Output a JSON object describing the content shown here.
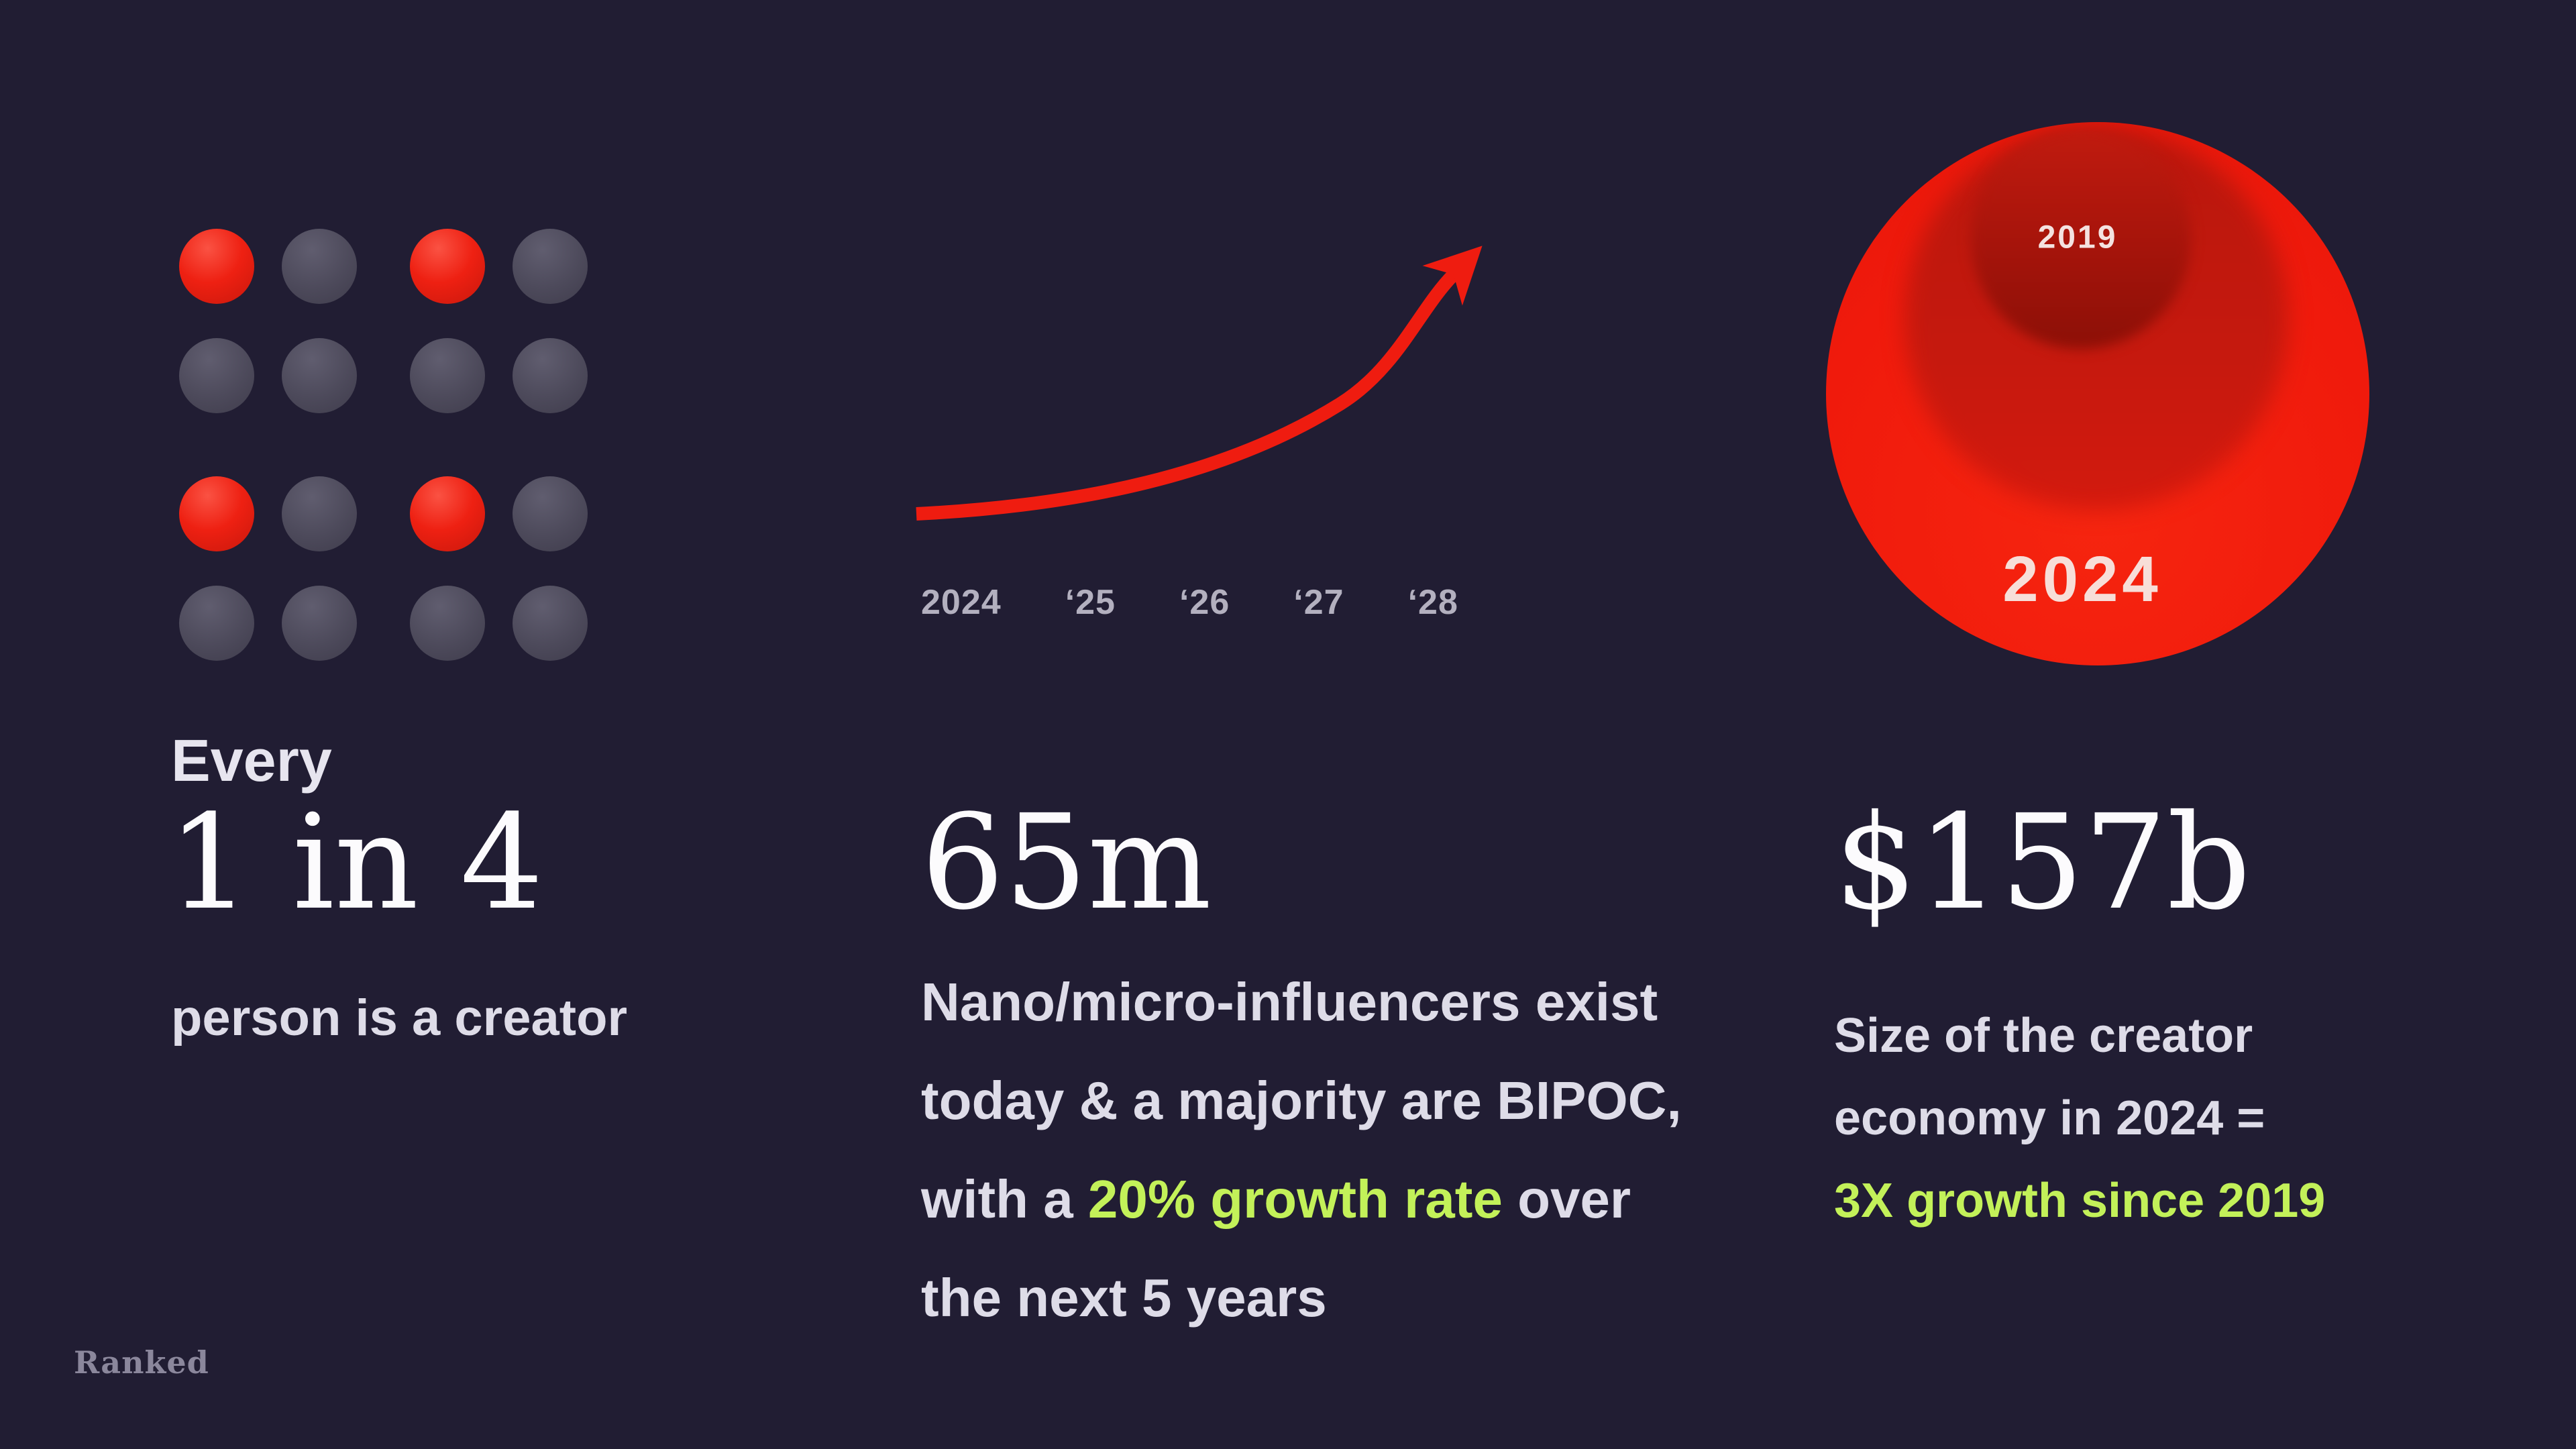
{
  "page": {
    "background": "#211d33",
    "brand": "Ranked"
  },
  "colors": {
    "accent_red": "#ee2012",
    "accent_green": "#c3f159",
    "text_light": "#dedce8",
    "text_muted": "#b3b0bf",
    "stat_white": "#fcfbfd",
    "dot_gray": "#4d4a5b"
  },
  "left": {
    "dot_grid": {
      "rows": 4,
      "cols": 4,
      "red_positions": [
        [
          0,
          0
        ],
        [
          0,
          2
        ],
        [
          2,
          0
        ],
        [
          2,
          2
        ]
      ]
    },
    "kicker": "Every",
    "stat": "1 in 4",
    "caption": "person is a creator"
  },
  "middle": {
    "axis_labels": [
      "2024",
      "‘25",
      "‘26",
      "‘27",
      "‘28"
    ],
    "stat": "65m",
    "lines": [
      [
        {
          "t": "Nano/micro-influencers exist"
        }
      ],
      [
        {
          "t": "today & a majority are BIPOC,"
        }
      ],
      [
        {
          "t": "with a "
        },
        {
          "t": "20% growth rate",
          "hl": true
        },
        {
          "t": " over"
        }
      ],
      [
        {
          "t": "the next 5 years"
        }
      ]
    ]
  },
  "right": {
    "bubble_labels": {
      "small": "2019",
      "big": "2024"
    },
    "stat": "$157b",
    "lines": [
      [
        {
          "t": "Size of the creator"
        }
      ],
      [
        {
          "t": "economy in 2024 ="
        }
      ],
      [
        {
          "t": "3X growth since 2019",
          "hl": true
        }
      ]
    ]
  },
  "chart_data": [
    {
      "type": "pictogram",
      "title": "Every 1 in 4 person is a creator",
      "grid_rows": 4,
      "grid_cols": 4,
      "total_units": 16,
      "highlighted_units": 4,
      "ratio": "1 in 4",
      "highlight_color": "#ee2012",
      "unit_color": "#4d4a5b"
    },
    {
      "type": "line",
      "title": "65m nano/micro-influencers, 20% growth rate over the next 5 years",
      "x": [
        "2024",
        "'25",
        "'26",
        "'27",
        "'28"
      ],
      "series": [
        {
          "name": "Nano/micro-influencers (indexed, implied 20% annual growth)",
          "values": [
            100,
            120,
            144,
            173,
            207
          ]
        }
      ],
      "style": "schematic exponential upward arrow, no y-axis, no gridlines",
      "line_color": "#ef1c10",
      "tick_label_color": "#b3b0bf",
      "legend": "none"
    },
    {
      "type": "bubble",
      "title": "Size of the creator economy in 2024 = 3X growth since 2019",
      "bubbles": [
        {
          "label": "2019",
          "relative_size": 1
        },
        {
          "label": "2024",
          "relative_size": 3,
          "value": "$157b"
        }
      ],
      "bubble_color": "#f01a0c",
      "annotation": "3X growth since 2019"
    }
  ]
}
